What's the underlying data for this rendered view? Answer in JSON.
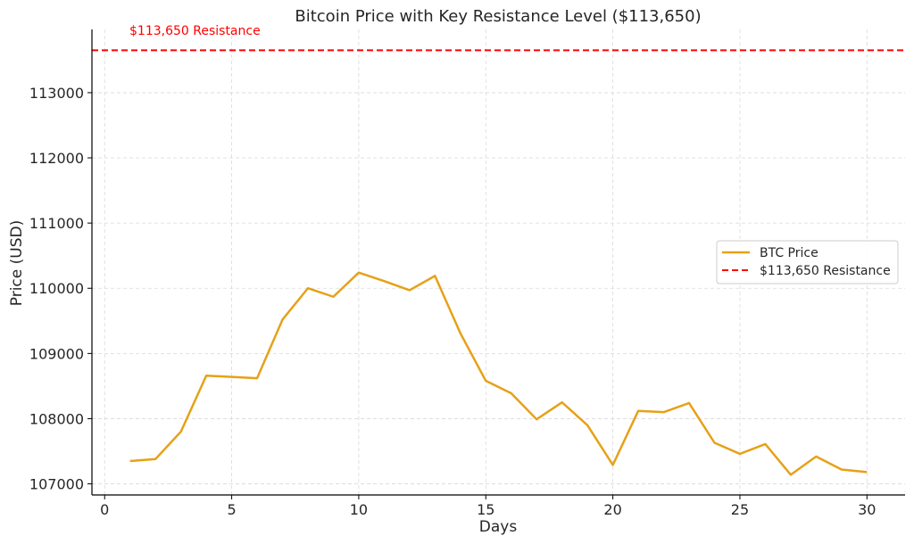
{
  "chart_data": {
    "type": "line",
    "title": "Bitcoin Price with Key Resistance Level ($113,650)",
    "xlabel": "Days",
    "ylabel": "Price (USD)",
    "xlim": [
      -0.5,
      31.5
    ],
    "ylim": [
      106830,
      113970
    ],
    "x_ticks": [
      0,
      5,
      10,
      15,
      20,
      25,
      30
    ],
    "y_ticks": [
      107000,
      108000,
      109000,
      110000,
      111000,
      112000,
      113000
    ],
    "grid": true,
    "legend_position": "center-right",
    "series": [
      {
        "name": "BTC Price",
        "color": "#E6A118",
        "x": [
          1,
          2,
          3,
          4,
          5,
          6,
          7,
          8,
          9,
          10,
          11,
          12,
          13,
          14,
          15,
          16,
          17,
          18,
          19,
          20,
          21,
          22,
          23,
          24,
          25,
          26,
          27,
          28,
          29,
          30
        ],
        "y": [
          107350,
          107380,
          107800,
          108660,
          108640,
          108620,
          109520,
          110000,
          109870,
          110240,
          110110,
          109970,
          110190,
          109310,
          108580,
          108390,
          107990,
          108250,
          107900,
          107290,
          108120,
          108100,
          108240,
          107630,
          107460,
          107610,
          107140,
          107420,
          107220,
          107180
        ]
      }
    ],
    "reference_lines": [
      {
        "name": "$113,650 Resistance",
        "y": 113650,
        "color": "#FF0000",
        "style": "dashed"
      }
    ],
    "annotations": [
      {
        "text": "$113,650 Resistance",
        "x": 1,
        "y": 113650,
        "color": "#FF0000"
      }
    ]
  }
}
